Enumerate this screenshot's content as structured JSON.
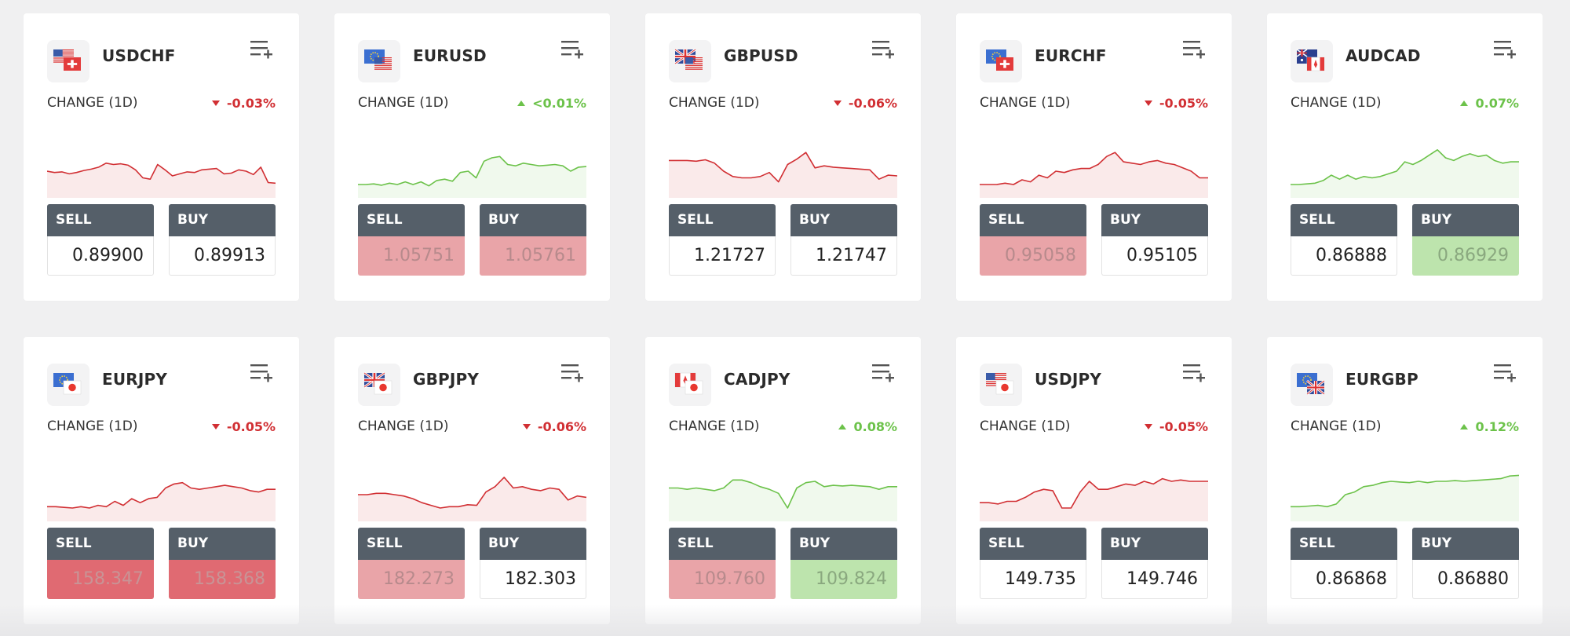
{
  "change_label": "CHANGE (1D)",
  "sell_label": "SELL",
  "buy_label": "BUY",
  "colors": {
    "down": "#d12f33",
    "up": "#6cc24a",
    "header": "#555f69"
  },
  "instruments": [
    {
      "symbol": "USDCHF",
      "flags": [
        "us",
        "ch"
      ],
      "dir": "down",
      "change": "-0.03%",
      "sell": "0.89900",
      "buy": "0.89913",
      "sell_state": "neutral",
      "buy_state": "neutral",
      "spark": [
        60,
        62,
        61,
        64,
        62,
        59,
        57,
        54,
        48,
        50,
        49,
        51,
        58,
        70,
        72,
        50,
        58,
        67,
        64,
        61,
        62,
        58,
        57,
        56,
        64,
        63,
        58,
        60,
        65,
        54,
        77,
        78
      ]
    },
    {
      "symbol": "EURUSD",
      "flags": [
        "eu",
        "us"
      ],
      "dir": "up",
      "change": "<0.01%",
      "sell": "1.05751",
      "buy": "1.05761",
      "sell_state": "red1",
      "buy_state": "red1",
      "spark": [
        80,
        80,
        79,
        81,
        78,
        80,
        76,
        80,
        76,
        82,
        74,
        72,
        75,
        62,
        60,
        70,
        45,
        40,
        38,
        50,
        52,
        48,
        50,
        52,
        51,
        50,
        52,
        60,
        54,
        53
      ]
    },
    {
      "symbol": "GBPUSD",
      "flags": [
        "gb",
        "us"
      ],
      "dir": "down",
      "change": "-0.06%",
      "sell": "1.21727",
      "buy": "1.21747",
      "sell_state": "neutral",
      "buy_state": "neutral",
      "spark": [
        44,
        44,
        44,
        45,
        43,
        48,
        60,
        68,
        70,
        70,
        68,
        62,
        76,
        50,
        42,
        32,
        55,
        52,
        54,
        55,
        56,
        57,
        58,
        72,
        66,
        67
      ]
    },
    {
      "symbol": "EURCHF",
      "flags": [
        "eu",
        "ch"
      ],
      "dir": "down",
      "change": "-0.05%",
      "sell": "0.95058",
      "buy": "0.95105",
      "sell_state": "red1",
      "buy_state": "neutral",
      "spark": [
        80,
        80,
        80,
        78,
        80,
        73,
        76,
        66,
        70,
        60,
        62,
        58,
        56,
        56,
        50,
        38,
        32,
        46,
        48,
        50,
        46,
        44,
        48,
        50,
        55,
        60,
        70,
        70
      ]
    },
    {
      "symbol": "AUDCAD",
      "flags": [
        "au",
        "ca"
      ],
      "dir": "up",
      "change": "0.07%",
      "sell": "0.86888",
      "buy": "0.86929",
      "sell_state": "neutral",
      "buy_state": "green",
      "spark": [
        80,
        80,
        79,
        78,
        74,
        66,
        72,
        66,
        72,
        68,
        70,
        68,
        64,
        60,
        46,
        50,
        44,
        36,
        28,
        40,
        44,
        38,
        34,
        38,
        36,
        44,
        48,
        46,
        46
      ]
    }
  ],
  "instruments2": [
    {
      "symbol": "EURJPY",
      "flags": [
        "eu",
        "jp"
      ],
      "dir": "down",
      "change": "-0.05%",
      "sell": "158.347",
      "buy": "158.368",
      "sell_state": "red2",
      "buy_state": "red2",
      "spark": [
        78,
        78,
        79,
        80,
        78,
        80,
        76,
        78,
        70,
        76,
        66,
        72,
        66,
        64,
        50,
        44,
        42,
        50,
        52,
        50,
        48,
        46,
        48,
        50,
        54,
        56,
        52,
        52
      ]
    },
    {
      "symbol": "GBPJPY",
      "flags": [
        "gb",
        "jp"
      ],
      "dir": "down",
      "change": "-0.06%",
      "sell": "182.273",
      "buy": "182.303",
      "sell_state": "red1",
      "buy_state": "neutral",
      "spark": [
        60,
        60,
        58,
        58,
        60,
        62,
        66,
        72,
        76,
        80,
        78,
        78,
        75,
        76,
        56,
        48,
        34,
        50,
        48,
        52,
        54,
        50,
        52,
        68,
        62,
        64
      ]
    },
    {
      "symbol": "CADJPY",
      "flags": [
        "ca",
        "jp"
      ],
      "dir": "up",
      "change": "0.08%",
      "sell": "109.760",
      "buy": "109.824",
      "sell_state": "red1",
      "buy_state": "green",
      "spark": [
        50,
        50,
        52,
        50,
        52,
        54,
        50,
        38,
        38,
        42,
        48,
        52,
        58,
        80,
        50,
        42,
        40,
        48,
        46,
        47,
        46,
        47,
        48,
        52,
        48,
        48
      ]
    },
    {
      "symbol": "USDJPY",
      "flags": [
        "us",
        "jp"
      ],
      "dir": "down",
      "change": "-0.05%",
      "sell": "149.735",
      "buy": "149.746",
      "sell_state": "neutral",
      "buy_state": "neutral",
      "spark": [
        72,
        72,
        74,
        70,
        70,
        64,
        56,
        52,
        54,
        80,
        80,
        56,
        40,
        52,
        52,
        48,
        44,
        46,
        40,
        44,
        36,
        40,
        38,
        40,
        40,
        40
      ]
    },
    {
      "symbol": "EURGBP",
      "flags": [
        "eu",
        "gb"
      ],
      "dir": "up",
      "change": "0.12%",
      "sell": "0.86868",
      "buy": "0.86880",
      "sell_state": "neutral",
      "buy_state": "neutral",
      "spark": [
        78,
        78,
        77,
        76,
        78,
        74,
        60,
        56,
        48,
        46,
        42,
        40,
        41,
        42,
        40,
        42,
        40,
        40,
        39,
        40,
        39,
        38,
        37,
        36,
        32,
        31
      ]
    }
  ]
}
